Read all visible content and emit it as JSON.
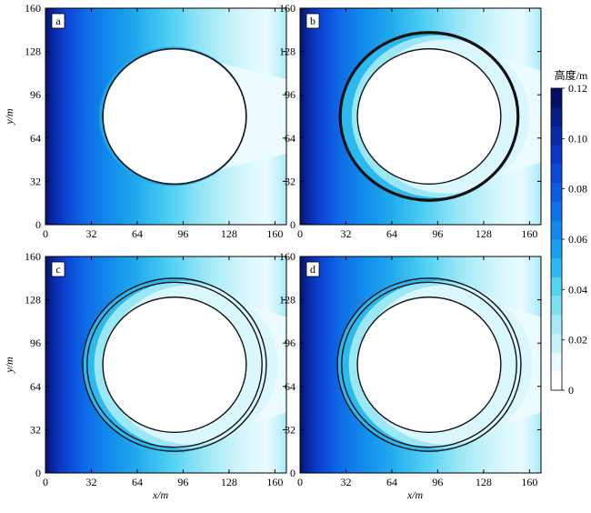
{
  "chart_data": {
    "type": "heatmap",
    "xlabel": "x/m",
    "ylabel": "y/m",
    "xlim": [
      0,
      168
    ],
    "ylim": [
      0,
      160
    ],
    "xticks": [
      0,
      32,
      64,
      96,
      128,
      160
    ],
    "yticks": [
      0,
      32,
      64,
      96,
      128,
      160
    ],
    "colorbar": {
      "title": "高度/m",
      "range": [
        0,
        0.12
      ],
      "ticks": [
        "0",
        "0.02",
        "0.04",
        "0.06",
        "0.08",
        "0.10",
        "0.12"
      ],
      "tick_values": [
        0,
        0.02,
        0.04,
        0.06,
        0.08,
        0.1,
        0.12
      ],
      "levels": 16,
      "colors": [
        "#ffffff",
        "#e9fbff",
        "#c9f3fb",
        "#a5eaf7",
        "#7fe0f4",
        "#55d2f2",
        "#2cb9ef",
        "#1aa0ee",
        "#1188ec",
        "#0f72ea",
        "#0d5de4",
        "#0b48d8",
        "#0a38c4",
        "#082aa8",
        "#061d86",
        "#041064"
      ]
    },
    "panels": [
      {
        "label": "a",
        "rings": [
          {
            "cx": 90,
            "cy": 80,
            "r": 50,
            "stroke": 1.6
          }
        ]
      },
      {
        "label": "b",
        "rings": [
          {
            "cx": 90,
            "cy": 80,
            "r": 50,
            "stroke": 1.4
          },
          {
            "cx": 90,
            "cy": 80,
            "r": 62,
            "stroke": 3.2
          }
        ]
      },
      {
        "label": "c",
        "rings": [
          {
            "cx": 90,
            "cy": 80,
            "r": 50,
            "stroke": 1.4
          },
          {
            "cx": 90,
            "cy": 80,
            "r": 61,
            "stroke": 1.4
          },
          {
            "cx": 90,
            "cy": 80,
            "r": 64,
            "stroke": 1.4
          }
        ]
      },
      {
        "label": "d",
        "rings": [
          {
            "cx": 90,
            "cy": 80,
            "r": 50,
            "stroke": 1.4
          },
          {
            "cx": 90,
            "cy": 80,
            "r": 61,
            "stroke": 1.4
          },
          {
            "cx": 90,
            "cy": 80,
            "r": 64,
            "stroke": 1.4
          }
        ]
      }
    ]
  }
}
